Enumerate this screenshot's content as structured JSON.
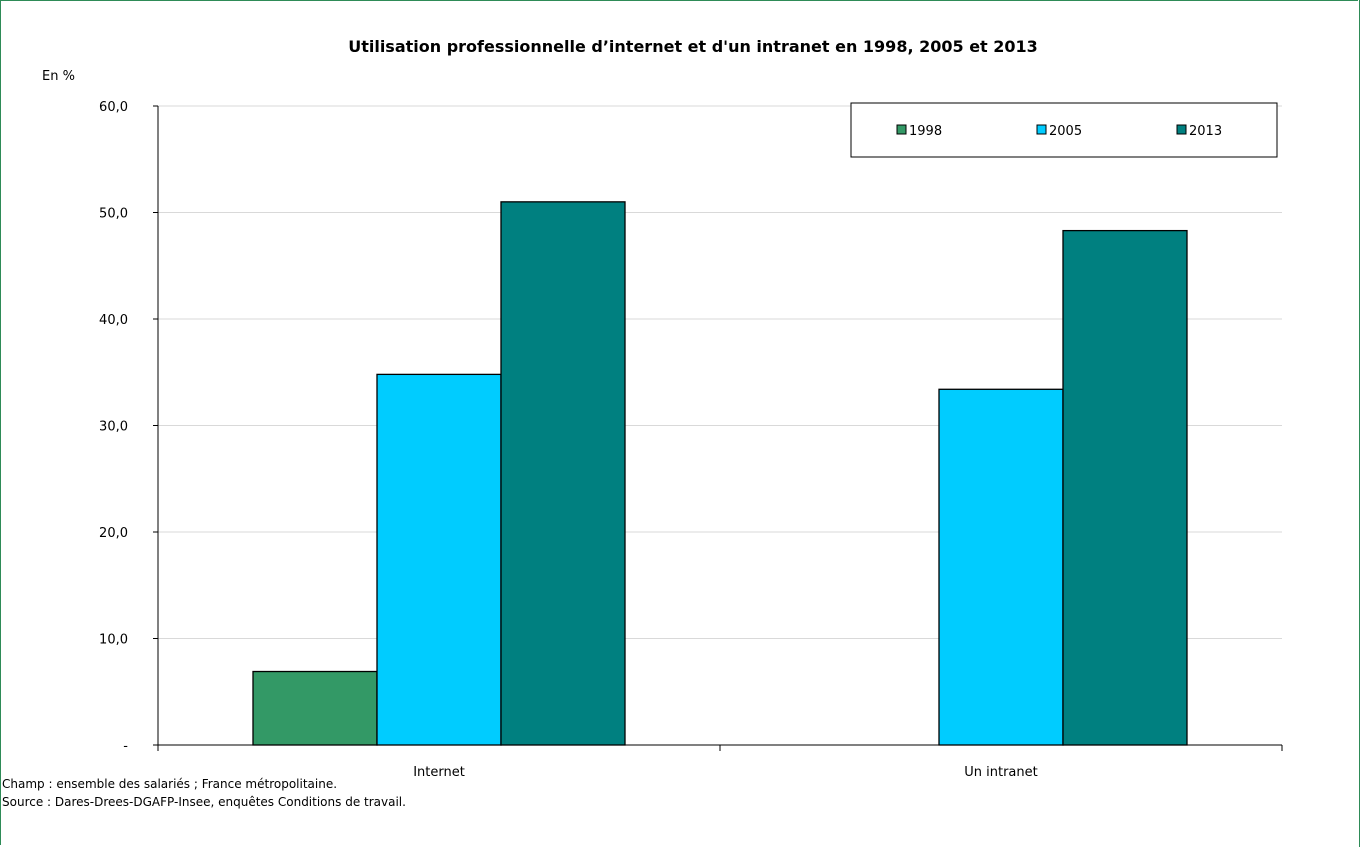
{
  "chart_data": {
    "type": "bar",
    "title": "Utilisation professionnelle d’internet et d'un intranet en 1998, 2005 et 2013",
    "unit_label": "En %",
    "categories": [
      "Internet",
      "Un intranet"
    ],
    "series": [
      {
        "name": "1998",
        "color": "#339966",
        "values": [
          6.9,
          null
        ]
      },
      {
        "name": "2005",
        "color": "#00ccff",
        "values": [
          34.8,
          33.4
        ]
      },
      {
        "name": "2013",
        "color": "#008080",
        "values": [
          51.0,
          48.3
        ]
      }
    ],
    "ylim": [
      0,
      60
    ],
    "y_ticks": [
      {
        "value": 0,
        "label": "-"
      },
      {
        "value": 10,
        "label": "10,0"
      },
      {
        "value": 20,
        "label": "20,0"
      },
      {
        "value": 30,
        "label": "30,0"
      },
      {
        "value": 40,
        "label": "40,0"
      },
      {
        "value": 50,
        "label": "50,0"
      },
      {
        "value": 60,
        "label": "60,0"
      }
    ],
    "grid": true,
    "legend_position": "top-right"
  },
  "notes": {
    "champ": "Champ : ensemble des salariés ; France métropolitaine.",
    "source": "Source : Dares-Drees-DGAFP-Insee, enquêtes Conditions de travail."
  }
}
